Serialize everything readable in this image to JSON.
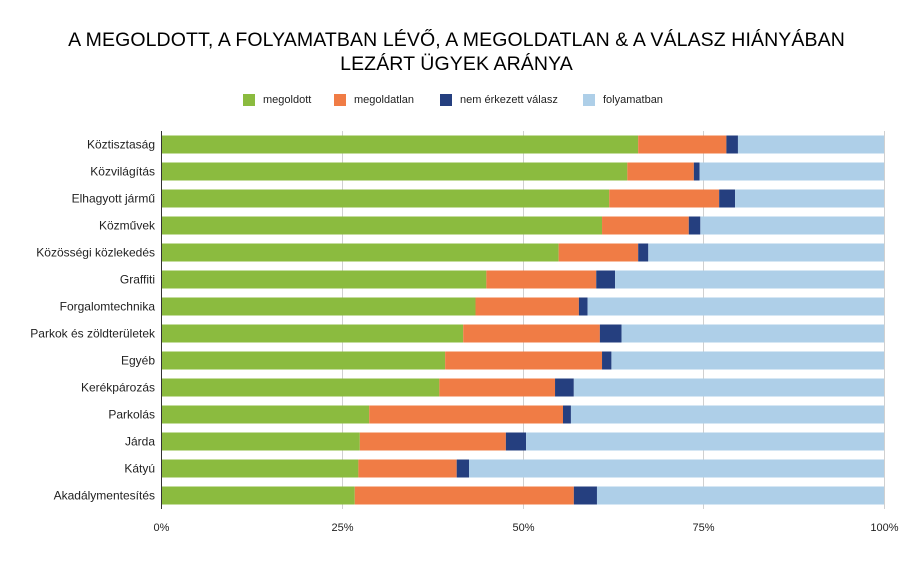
{
  "chart_data": {
    "type": "bar",
    "orientation": "horizontal",
    "stacked": true,
    "title_line1": "A MEGOLDOTT, A FOLYAMATBAN LÉVŐ, A MEGOLDATLAN & A VÁLASZ HIÁNYÁBAN",
    "title_line2": "LEZÁRT ÜGYEK ARÁNYA",
    "legend_position": "top",
    "grid": true,
    "xlim": [
      0,
      100
    ],
    "x_ticks": [
      "0%",
      "25%",
      "50%",
      "75%",
      "100%"
    ],
    "categories": [
      "Köztisztaság",
      "Közvilágítás",
      "Elhagyott jármű",
      "Közművek",
      "Közösségi közlekedés",
      "Graffiti",
      "Forgalomtechnika",
      "Parkok és zöldterületek",
      "Egyéb",
      "Kerékpározás",
      "Parkolás",
      "Járda",
      "Kátyú",
      "Akadálymentesítés"
    ],
    "series": [
      {
        "name": "megoldott",
        "color": "#8bbb3f",
        "values": [
          66.0,
          64.5,
          62.0,
          61.0,
          55.0,
          45.0,
          43.5,
          41.8,
          39.3,
          38.5,
          28.8,
          27.5,
          27.3,
          26.8
        ]
      },
      {
        "name": "megoldatlan",
        "color": "#f07c45",
        "values": [
          12.2,
          9.2,
          15.2,
          12.0,
          11.0,
          15.2,
          14.3,
          18.9,
          21.7,
          16.0,
          26.8,
          20.2,
          13.6,
          30.3
        ]
      },
      {
        "name": "nem érkezett válasz",
        "color": "#253f7f",
        "values": [
          1.6,
          0.8,
          2.2,
          1.6,
          1.4,
          2.6,
          1.2,
          3.0,
          1.3,
          2.6,
          1.1,
          2.8,
          1.7,
          3.2
        ]
      },
      {
        "name": "folyamatban",
        "color": "#aecfe8",
        "values": [
          20.2,
          25.5,
          20.6,
          25.4,
          32.6,
          37.2,
          41.0,
          36.3,
          37.7,
          42.9,
          43.3,
          49.5,
          57.4,
          39.7
        ]
      }
    ]
  }
}
